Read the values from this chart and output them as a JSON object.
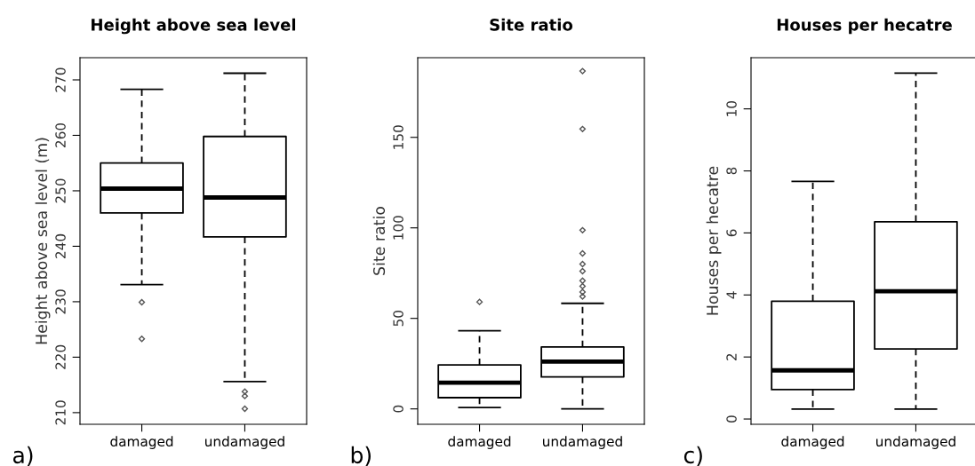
{
  "chart_data": [
    {
      "type": "box",
      "title": "Height above sea level",
      "ylabel": "Height above sea level (m)",
      "categories": [
        "damaged",
        "undamaged"
      ],
      "ylim": [
        207.9,
        274
      ],
      "yticks": [
        210,
        220,
        230,
        240,
        250,
        260,
        270
      ],
      "annotations": [
        "a)"
      ],
      "grid": false,
      "boxes": [
        {
          "low": 233.1,
          "q1": 246.0,
          "median": 250.4,
          "q3": 255.0,
          "high": 268.3,
          "outliers": [
            229.9,
            223.3
          ]
        },
        {
          "low": 215.6,
          "q1": 241.7,
          "median": 248.8,
          "q3": 259.8,
          "high": 271.2,
          "outliers": [
            213.8,
            213.0,
            210.7
          ]
        }
      ]
    },
    {
      "type": "box",
      "title": "Site ratio",
      "ylabel": "Site ratio",
      "categories": [
        "damaged",
        "undamaged"
      ],
      "ylim": [
        -8.5,
        194
      ],
      "yticks": [
        0,
        50,
        100,
        150
      ],
      "annotations": [
        "b)"
      ],
      "grid": false,
      "boxes": [
        {
          "low": 0.8,
          "q1": 6.2,
          "median": 14.5,
          "q3": 24.3,
          "high": 43.2,
          "outliers": [
            59.1
          ]
        },
        {
          "low": 0,
          "q1": 17.7,
          "median": 26.1,
          "q3": 34.2,
          "high": 58.3,
          "outliers": [
            186.6,
            154.6,
            98.7,
            85.9,
            80.0,
            76.1,
            70.8,
            67.8,
            64.6,
            62.1
          ]
        }
      ]
    },
    {
      "type": "box",
      "title": "Houses per hecatre",
      "ylabel": "Houses per hecatre",
      "categories": [
        "damaged",
        "undamaged"
      ],
      "ylim": [
        -0.17,
        11.65
      ],
      "yticks": [
        0,
        2,
        4,
        6,
        8,
        10
      ],
      "annotations": [
        "c)"
      ],
      "grid": false,
      "boxes": [
        {
          "low": 0.32,
          "q1": 0.95,
          "median": 1.57,
          "q3": 3.8,
          "high": 7.66
        },
        {
          "low": 0.32,
          "q1": 2.26,
          "median": 4.12,
          "q3": 6.36,
          "high": 11.15
        }
      ]
    }
  ]
}
